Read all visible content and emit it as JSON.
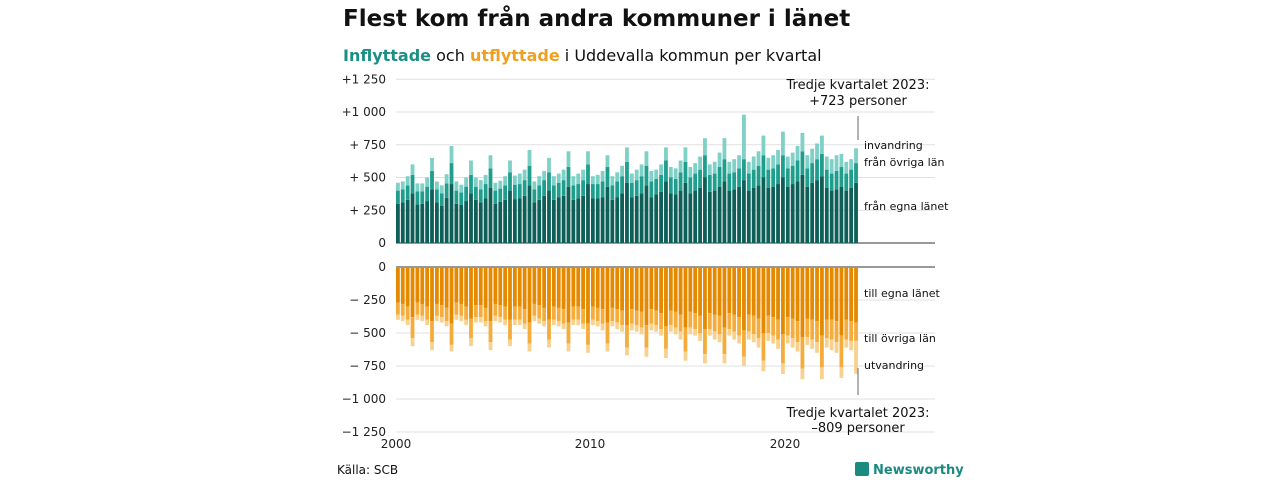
{
  "title": "Flest kom från andra kommuner i länet",
  "subtitle": {
    "inflyttade": "Inflyttade",
    "och": "och",
    "utflyttade": "utflyttade",
    "rest": "i Uddevalla  kommun  per  kvartal"
  },
  "colors": {
    "in_egna": "#0e5f57",
    "in_ovriga": "#1f9e8e",
    "in_utland": "#7fd0c6",
    "ut_egna": "#e58a00",
    "ut_ovriga": "#f4ad3c",
    "ut_utland": "#f9d18e"
  },
  "annotations": {
    "top": [
      "Tredje kvartalet 2023:",
      "+723 personer"
    ],
    "bottom": [
      "Tredje kvartalet 2023:",
      "–809 personer"
    ]
  },
  "source": "Källa: SCB",
  "brand": "Newsworthy",
  "chart_data": {
    "type": "bar",
    "title": "Flest kom från andra kommuner i länet",
    "x_start": "2000 Q1",
    "x_end": "2023 Q3",
    "x_ticks": [
      "2000",
      "2010",
      "2020"
    ],
    "y_ticks_top": [
      "+1 250",
      "+1 000",
      "+  750",
      "+  500",
      "+  250",
      "0"
    ],
    "y_ticks_bottom": [
      "0",
      "−  250",
      "−  500",
      "−  750",
      "−1 000",
      "−1 250"
    ],
    "ylim_top": [
      0,
      1250
    ],
    "ylim_bottom": [
      -1250,
      0
    ],
    "series_top": [
      {
        "name": "från egna länet",
        "values": [
          300,
          310,
          330,
          380,
          295,
          300,
          320,
          410,
          310,
          285,
          345,
          450,
          300,
          290,
          320,
          380,
          330,
          310,
          340,
          420,
          300,
          315,
          330,
          400,
          335,
          340,
          360,
          440,
          310,
          330,
          360,
          400,
          330,
          350,
          360,
          430,
          330,
          340,
          360,
          450,
          340,
          340,
          350,
          430,
          330,
          350,
          380,
          460,
          350,
          360,
          380,
          440,
          350,
          370,
          390,
          470,
          380,
          370,
          400,
          460,
          380,
          400,
          420,
          500,
          390,
          400,
          430,
          470,
          400,
          410,
          430,
          480,
          400,
          420,
          440,
          500,
          420,
          430,
          450,
          500,
          430,
          450,
          470,
          520,
          430,
          460,
          480,
          510,
          420,
          400,
          410,
          430,
          400,
          420,
          460
        ]
      },
      {
        "name": "från övriga län",
        "values": [
          100,
          100,
          110,
          140,
          100,
          95,
          110,
          140,
          100,
          95,
          110,
          160,
          100,
          95,
          110,
          140,
          100,
          100,
          110,
          150,
          100,
          100,
          110,
          140,
          110,
          110,
          120,
          150,
          100,
          110,
          120,
          140,
          110,
          110,
          120,
          150,
          110,
          110,
          120,
          150,
          110,
          110,
          120,
          150,
          110,
          120,
          130,
          160,
          110,
          120,
          130,
          150,
          120,
          120,
          130,
          160,
          120,
          120,
          140,
          160,
          120,
          130,
          140,
          170,
          130,
          130,
          150,
          170,
          130,
          130,
          140,
          160,
          130,
          140,
          150,
          170,
          140,
          140,
          150,
          170,
          140,
          140,
          160,
          180,
          140,
          150,
          160,
          170,
          140,
          130,
          140,
          150,
          130,
          140,
          150
        ]
      },
      {
        "name": "invandring",
        "values": [
          60,
          60,
          70,
          80,
          60,
          60,
          70,
          100,
          60,
          60,
          70,
          130,
          70,
          60,
          70,
          110,
          70,
          70,
          70,
          100,
          60,
          60,
          70,
          90,
          70,
          80,
          80,
          120,
          60,
          70,
          70,
          110,
          70,
          70,
          80,
          120,
          70,
          80,
          80,
          100,
          60,
          70,
          80,
          90,
          70,
          70,
          80,
          110,
          70,
          80,
          90,
          110,
          80,
          70,
          80,
          100,
          80,
          80,
          90,
          110,
          80,
          80,
          100,
          130,
          80,
          90,
          110,
          160,
          90,
          100,
          100,
          340,
          90,
          100,
          110,
          150,
          90,
          100,
          110,
          180,
          90,
          100,
          110,
          140,
          100,
          110,
          120,
          140,
          100,
          110,
          120,
          100,
          90,
          80,
          113
        ]
      }
    ],
    "series_bottom": [
      {
        "name": "till egna länet",
        "values": [
          -270,
          -280,
          -300,
          -380,
          -270,
          -280,
          -300,
          -410,
          -280,
          -290,
          -310,
          -430,
          -270,
          -280,
          -300,
          -390,
          -290,
          -290,
          -310,
          -410,
          -280,
          -290,
          -300,
          -400,
          -300,
          -300,
          -320,
          -420,
          -280,
          -290,
          -310,
          -400,
          -300,
          -310,
          -320,
          -420,
          -300,
          -300,
          -320,
          -430,
          -300,
          -310,
          -320,
          -420,
          -310,
          -320,
          -330,
          -440,
          -320,
          -330,
          -340,
          -440,
          -320,
          -330,
          -350,
          -450,
          -330,
          -340,
          -360,
          -460,
          -340,
          -350,
          -370,
          -470,
          -350,
          -360,
          -370,
          -460,
          -350,
          -360,
          -380,
          -480,
          -360,
          -370,
          -390,
          -500,
          -370,
          -380,
          -400,
          -510,
          -380,
          -390,
          -410,
          -530,
          -390,
          -400,
          -410,
          -520,
          -400,
          -400,
          -410,
          -520,
          -400,
          -410,
          -420
        ]
      },
      {
        "name": "till övriga län",
        "values": [
          -90,
          -90,
          -100,
          -160,
          -90,
          -90,
          -100,
          -160,
          -90,
          -90,
          -100,
          -160,
          -90,
          -90,
          -100,
          -150,
          -90,
          -90,
          -100,
          -160,
          -90,
          -90,
          -100,
          -150,
          -100,
          -100,
          -110,
          -160,
          -90,
          -100,
          -100,
          -150,
          -100,
          -100,
          -110,
          -160,
          -100,
          -100,
          -110,
          -160,
          -100,
          -100,
          -110,
          -160,
          -100,
          -100,
          -110,
          -170,
          -110,
          -110,
          -120,
          -170,
          -110,
          -110,
          -120,
          -170,
          -110,
          -120,
          -130,
          -180,
          -120,
          -120,
          -130,
          -190,
          -120,
          -130,
          -140,
          -200,
          -120,
          -130,
          -140,
          -200,
          -130,
          -140,
          -150,
          -210,
          -130,
          -140,
          -150,
          -220,
          -140,
          -150,
          -160,
          -240,
          -140,
          -150,
          -160,
          -240,
          -140,
          -150,
          -160,
          -240,
          -150,
          -150,
          -140
        ]
      },
      {
        "name": "utvandring",
        "values": [
          -40,
          -40,
          -40,
          -60,
          -40,
          -40,
          -40,
          -60,
          -40,
          -40,
          -40,
          -50,
          -40,
          -40,
          -40,
          -60,
          -40,
          -40,
          -40,
          -60,
          -40,
          -40,
          -40,
          -50,
          -40,
          -40,
          -40,
          -60,
          -40,
          -40,
          -40,
          -60,
          -40,
          -40,
          -40,
          -60,
          -40,
          -40,
          -40,
          -60,
          -40,
          -40,
          -50,
          -60,
          -40,
          -50,
          -50,
          -60,
          -50,
          -50,
          -50,
          -70,
          -50,
          -50,
          -50,
          -70,
          -50,
          -50,
          -60,
          -70,
          -50,
          -50,
          -60,
          -70,
          -50,
          -60,
          -60,
          -70,
          -50,
          -60,
          -60,
          -70,
          -60,
          -60,
          -70,
          -80,
          -60,
          -60,
          -70,
          -80,
          -60,
          -70,
          -70,
          -80,
          -60,
          -70,
          -80,
          -90,
          -70,
          -80,
          -80,
          -80,
          -60,
          -70,
          -249
        ]
      }
    ],
    "labels_top": [
      "invandring",
      "från övriga län",
      "från egna länet"
    ],
    "labels_bottom": [
      "till egna länet",
      "till övriga län",
      "utvandring"
    ],
    "grid": true
  }
}
